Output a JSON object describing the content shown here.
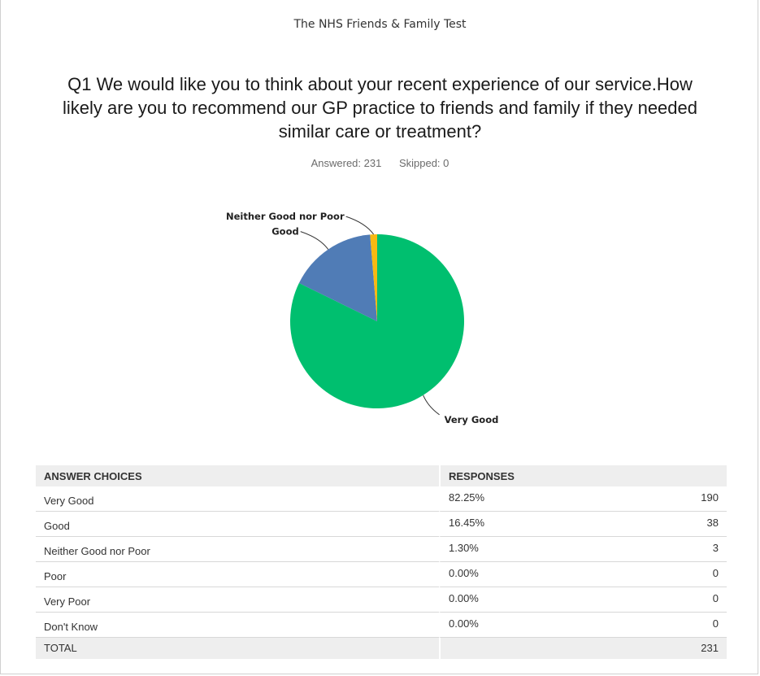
{
  "survey_title": "The NHS Friends & Family Test",
  "question": "Q1 We would like you to think about your recent experience of our service.How likely are you to recommend our GP practice to friends and family if they needed similar care or treatment?",
  "stats": {
    "answered": "Answered: 231",
    "skipped": "Skipped: 0"
  },
  "chart_data": {
    "type": "pie",
    "title": "",
    "slices": [
      {
        "label": "Very Good",
        "value": 190,
        "color": "#00bf6f"
      },
      {
        "label": "Good",
        "value": 38,
        "color": "#507cb6"
      },
      {
        "label": "Neither Good nor Poor",
        "value": 3,
        "color": "#f7b912"
      }
    ],
    "legend": "none"
  },
  "table": {
    "headers": {
      "choices": "ANSWER CHOICES",
      "responses": "RESPONSES"
    },
    "rows": [
      {
        "choice": "Very Good",
        "percent": "82.25%",
        "count": "190"
      },
      {
        "choice": "Good",
        "percent": "16.45%",
        "count": "38"
      },
      {
        "choice": "Neither Good nor Poor",
        "percent": "1.30%",
        "count": "3"
      },
      {
        "choice": "Poor",
        "percent": "0.00%",
        "count": "0"
      },
      {
        "choice": "Very  Poor",
        "percent": "0.00%",
        "count": "0"
      },
      {
        "choice": "Don't Know",
        "percent": "0.00%",
        "count": "0"
      }
    ],
    "total_label": "TOTAL",
    "total_count": "231"
  }
}
